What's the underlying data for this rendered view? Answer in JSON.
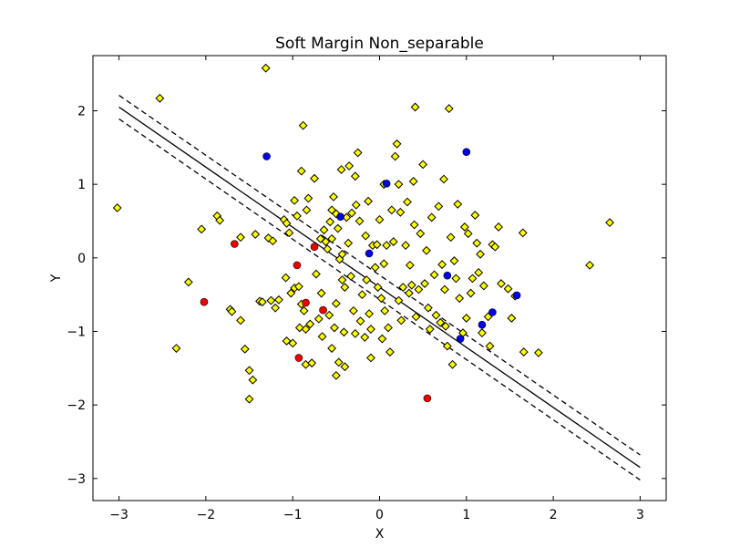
{
  "chart_data": {
    "type": "scatter",
    "title": "Soft Margin Non_separable",
    "xlabel": "X",
    "ylabel": "Y",
    "xlim": [
      -3.3,
      3.3
    ],
    "ylim": [
      -3.3,
      2.75
    ],
    "xticks": [
      -3,
      -2,
      -1,
      0,
      1,
      2,
      3
    ],
    "yticks": [
      -3,
      -2,
      -1,
      0,
      1,
      2
    ],
    "grid": false,
    "legend": "none",
    "colors": {
      "non_support_marker": "#ffff00",
      "class_a_support": "#ee0000",
      "class_b_support": "#0000ee",
      "marker_edge": "#000000",
      "lines": "#000000"
    },
    "lines": [
      {
        "style": "solid",
        "x": [
          -3,
          3
        ],
        "y": [
          2.05,
          -2.85
        ]
      },
      {
        "style": "dashed",
        "x": [
          -3,
          3
        ],
        "y": [
          2.21,
          -2.68
        ]
      },
      {
        "style": "dashed",
        "x": [
          -3,
          3
        ],
        "y": [
          1.89,
          -3.02
        ]
      }
    ],
    "series": [
      {
        "marker": "diamond",
        "color": "#ffff00",
        "points": [
          [
            -3.02,
            0.68
          ],
          [
            -2.53,
            2.17
          ],
          [
            -2.34,
            -1.23
          ],
          [
            -2.2,
            -0.33
          ],
          [
            -2.05,
            0.39
          ],
          [
            -1.87,
            0.57
          ],
          [
            -1.84,
            0.51
          ],
          [
            -1.72,
            -0.7
          ],
          [
            -1.7,
            -0.73
          ],
          [
            -1.6,
            -0.85
          ],
          [
            -1.6,
            0.28
          ],
          [
            -1.55,
            -1.24
          ],
          [
            -1.5,
            -1.53
          ],
          [
            -1.5,
            -1.92
          ],
          [
            -1.46,
            -1.66
          ],
          [
            -1.43,
            0.32
          ],
          [
            -1.38,
            -0.59
          ],
          [
            -1.35,
            -0.6
          ],
          [
            -1.31,
            2.58
          ],
          [
            -1.28,
            0.27
          ],
          [
            -1.25,
            -0.58
          ],
          [
            -1.23,
            0.23
          ],
          [
            -1.2,
            -0.68
          ],
          [
            -1.16,
            -0.57
          ],
          [
            -1.1,
            0.52
          ],
          [
            -1.08,
            -0.27
          ],
          [
            -1.07,
            -1.13
          ],
          [
            -1.07,
            0.47
          ],
          [
            -1.04,
            0.34
          ],
          [
            -1.02,
            -0.48
          ],
          [
            -1.0,
            -1.16
          ],
          [
            -0.98,
            0.78
          ],
          [
            -0.98,
            -0.41
          ],
          [
            -0.95,
            0.57
          ],
          [
            -0.93,
            -0.39
          ],
          [
            -0.92,
            -0.95
          ],
          [
            -0.9,
            -0.63
          ],
          [
            -0.9,
            1.18
          ],
          [
            -0.88,
            1.8
          ],
          [
            -0.87,
            -0.72
          ],
          [
            -0.85,
            -0.97
          ],
          [
            -0.85,
            -1.45
          ],
          [
            -0.84,
            0.65
          ],
          [
            -0.82,
            0.81
          ],
          [
            -0.8,
            -0.9
          ],
          [
            -0.78,
            -1.43
          ],
          [
            -0.75,
            1.08
          ],
          [
            -0.73,
            -0.22
          ],
          [
            -0.7,
            -0.83
          ],
          [
            -0.68,
            0.26
          ],
          [
            -0.67,
            -0.48
          ],
          [
            -0.66,
            -1.07
          ],
          [
            -0.64,
            0.38
          ],
          [
            -0.62,
            0.22
          ],
          [
            -0.6,
            0.12
          ],
          [
            -0.58,
            -0.78
          ],
          [
            -0.57,
            0.49
          ],
          [
            -0.55,
            -1.23
          ],
          [
            -0.55,
            0.26
          ],
          [
            -0.53,
            0.83
          ],
          [
            -0.52,
            -0.95
          ],
          [
            -0.5,
            -1.6
          ],
          [
            -0.5,
            -0.62
          ],
          [
            -0.5,
            0.6
          ],
          [
            -0.48,
            0.4
          ],
          [
            -0.47,
            -1.42
          ],
          [
            -0.46,
            -0.02
          ],
          [
            -0.44,
            1.2
          ],
          [
            -0.43,
            -0.3
          ],
          [
            -0.43,
            0.05
          ],
          [
            -0.41,
            -1.01
          ],
          [
            -0.4,
            -0.4
          ],
          [
            -0.4,
            -1.48
          ],
          [
            -0.38,
            0.55
          ],
          [
            -0.36,
            0.2
          ],
          [
            -0.35,
            1.25
          ],
          [
            -0.33,
            -0.25
          ],
          [
            -0.32,
            0.61
          ],
          [
            -0.3,
            -0.72
          ],
          [
            -0.28,
            -1.03
          ],
          [
            -0.28,
            1.11
          ],
          [
            -0.25,
            1.43
          ],
          [
            -0.23,
            0.5
          ],
          [
            -0.22,
            -0.86
          ],
          [
            -0.2,
            -0.5
          ],
          [
            -0.17,
            -1.08
          ],
          [
            -0.16,
            0.3
          ],
          [
            -0.13,
            0.77
          ],
          [
            -0.12,
            -0.76
          ],
          [
            -0.1,
            -0.97
          ],
          [
            -0.1,
            -1.36
          ],
          [
            -0.08,
            0.17
          ],
          [
            -0.05,
            -0.13
          ],
          [
            -0.03,
            0.18
          ],
          [
            -0.02,
            -0.4
          ],
          [
            0.0,
            0.52
          ],
          [
            0.02,
            -0.55
          ],
          [
            0.03,
            -1.1
          ],
          [
            0.05,
            1.0
          ],
          [
            0.06,
            -0.72
          ],
          [
            0.08,
            0.17
          ],
          [
            0.1,
            -0.95
          ],
          [
            0.12,
            -1.28
          ],
          [
            0.14,
            0.65
          ],
          [
            0.16,
            0.22
          ],
          [
            0.18,
            1.38
          ],
          [
            0.2,
            1.55
          ],
          [
            0.22,
            -0.58
          ],
          [
            0.24,
            0.62
          ],
          [
            0.25,
            -0.85
          ],
          [
            0.27,
            -0.4
          ],
          [
            0.3,
            0.17
          ],
          [
            0.32,
            0.76
          ],
          [
            0.34,
            -0.48
          ],
          [
            0.35,
            -0.1
          ],
          [
            0.37,
            -0.37
          ],
          [
            0.39,
            1.04
          ],
          [
            0.41,
            2.05
          ],
          [
            0.42,
            -0.8
          ],
          [
            0.45,
            -0.43
          ],
          [
            0.47,
            0.33
          ],
          [
            0.5,
            1.27
          ],
          [
            0.52,
            -0.35
          ],
          [
            0.54,
            0.1
          ],
          [
            0.56,
            -0.68
          ],
          [
            0.58,
            -0.97
          ],
          [
            0.6,
            0.55
          ],
          [
            0.63,
            -0.23
          ],
          [
            0.65,
            -0.78
          ],
          [
            0.68,
            0.7
          ],
          [
            0.7,
            -0.88
          ],
          [
            0.72,
            -0.09
          ],
          [
            0.74,
            1.07
          ],
          [
            0.76,
            -0.93
          ],
          [
            0.78,
            -1.2
          ],
          [
            0.8,
            2.03
          ],
          [
            0.82,
            0.28
          ],
          [
            0.84,
            -1.45
          ],
          [
            0.86,
            -0.04
          ],
          [
            0.88,
            -0.28
          ],
          [
            0.9,
            0.73
          ],
          [
            0.92,
            -0.55
          ],
          [
            0.96,
            -1.02
          ],
          [
            0.98,
            0.42
          ],
          [
            1.0,
            -0.82
          ],
          [
            1.02,
            0.33
          ],
          [
            1.05,
            -0.48
          ],
          [
            1.07,
            -0.28
          ],
          [
            1.1,
            0.58
          ],
          [
            1.12,
            0.2
          ],
          [
            1.14,
            -0.2
          ],
          [
            1.16,
            0.05
          ],
          [
            1.18,
            -1.02
          ],
          [
            1.2,
            -0.38
          ],
          [
            1.25,
            -0.8
          ],
          [
            1.27,
            -1.2
          ],
          [
            1.3,
            0.18
          ],
          [
            1.33,
            0.15
          ],
          [
            1.37,
            0.42
          ],
          [
            1.4,
            -0.35
          ],
          [
            1.48,
            -0.42
          ],
          [
            1.52,
            -0.82
          ],
          [
            1.56,
            -0.52
          ],
          [
            1.65,
            0.34
          ],
          [
            1.66,
            -1.28
          ],
          [
            1.83,
            -1.29
          ],
          [
            2.42,
            -0.1
          ],
          [
            2.65,
            0.48
          ],
          [
            -0.55,
            0.65
          ],
          [
            0.75,
            -0.43
          ],
          [
            0.05,
            -0.08
          ],
          [
            -0.27,
            0.72
          ],
          [
            0.4,
            0.45
          ],
          [
            -0.15,
            -0.3
          ],
          [
            0.22,
            1.0
          ]
        ]
      },
      {
        "marker": "circle",
        "color": "#ee0000",
        "points": [
          [
            -2.02,
            -0.6
          ],
          [
            -1.67,
            0.19
          ],
          [
            -0.95,
            -0.1
          ],
          [
            -0.85,
            -0.61
          ],
          [
            -0.75,
            0.15
          ],
          [
            -0.65,
            -0.71
          ],
          [
            -0.93,
            -1.36
          ],
          [
            0.55,
            -1.91
          ]
        ]
      },
      {
        "marker": "circle",
        "color": "#0000ee",
        "points": [
          [
            -1.3,
            1.38
          ],
          [
            -0.45,
            0.56
          ],
          [
            -0.12,
            0.06
          ],
          [
            0.08,
            1.01
          ],
          [
            1.0,
            1.44
          ],
          [
            0.78,
            -0.24
          ],
          [
            0.93,
            -1.1
          ],
          [
            1.18,
            -0.91
          ],
          [
            1.3,
            -0.74
          ],
          [
            1.58,
            -0.51
          ]
        ]
      }
    ]
  }
}
